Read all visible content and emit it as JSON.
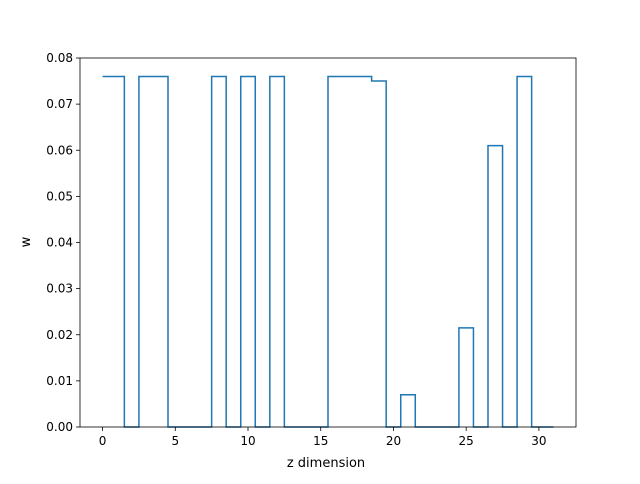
{
  "chart_data": {
    "type": "line",
    "style": "step",
    "title": "",
    "xlabel": "z dimension",
    "ylabel": "w",
    "xlim": [
      -1.55,
      32.55
    ],
    "ylim": [
      0,
      0.08
    ],
    "x_ticks": [
      0,
      5,
      10,
      15,
      20,
      25,
      30
    ],
    "x_tick_labels": [
      "0",
      "5",
      "10",
      "15",
      "20",
      "25",
      "30"
    ],
    "y_ticks": [
      0.0,
      0.01,
      0.02,
      0.03,
      0.04,
      0.05,
      0.06,
      0.07,
      0.08
    ],
    "y_tick_labels": [
      "0.00",
      "0.01",
      "0.02",
      "0.03",
      "0.04",
      "0.05",
      "0.06",
      "0.07",
      "0.08"
    ],
    "grid": false,
    "legend": null,
    "series": [
      {
        "color": "#1f77b4",
        "x": [
          0,
          1,
          2,
          3,
          4,
          5,
          6,
          7,
          8,
          9,
          10,
          11,
          12,
          13,
          14,
          15,
          16,
          17,
          18,
          19,
          20,
          21,
          22,
          23,
          24,
          25,
          26,
          27,
          28,
          29,
          30,
          31
        ],
        "y": [
          0.076,
          0.076,
          0.0,
          0.076,
          0.076,
          0.0,
          0.0,
          0.0,
          0.076,
          0.0,
          0.076,
          0.0,
          0.076,
          0.0,
          0.0,
          0.0,
          0.076,
          0.076,
          0.076,
          0.075,
          0.0,
          0.007,
          0.0,
          0.0,
          0.0,
          0.0215,
          0.0,
          0.061,
          0.0,
          0.076,
          0.0,
          0.0
        ]
      }
    ]
  }
}
